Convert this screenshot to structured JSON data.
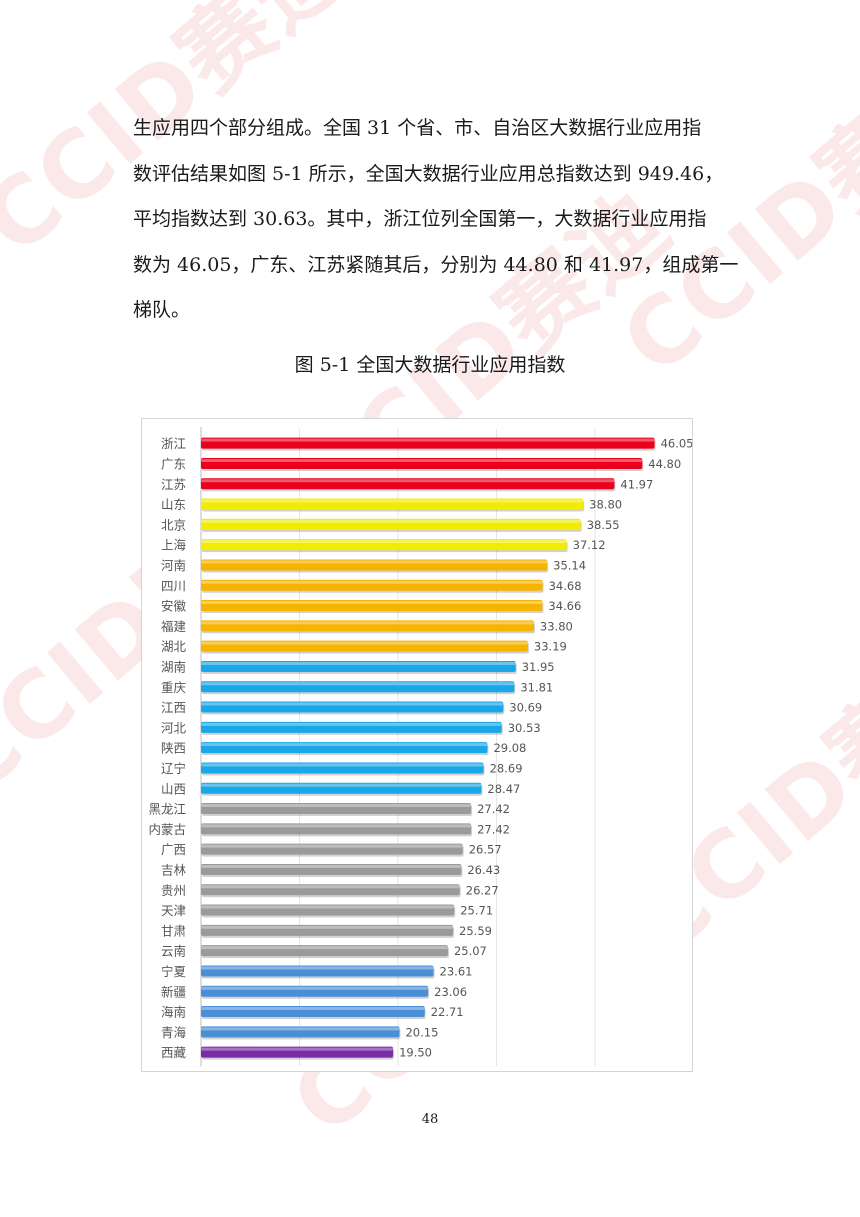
{
  "paragraph": {
    "lines": [
      "生应用四个部分组成。全国 31 个省、市、自治区大数据行业应用指",
      "数评估结果如图 5-1 所示，全国大数据行业应用总指数达到 949.46，",
      "平均指数达到  30.63。其中，浙江位列全国第一，大数据行业应用指",
      "数为 46.05，广东、江苏紧随其后，分别为 44.80 和 41.97，组成第一",
      "梯队。"
    ]
  },
  "figure": {
    "caption": "图 5-1  全国大数据行业应用指数"
  },
  "watermark": {
    "text": "CCID赛迪"
  },
  "page_number": "48",
  "chart_data": {
    "type": "bar",
    "orientation": "horizontal",
    "title": "",
    "xlabel": "",
    "ylabel": "",
    "xlim": [
      0,
      50
    ],
    "grid": "vertical",
    "legend": "none",
    "categories": [
      "浙江",
      "广东",
      "江苏",
      "山东",
      "北京",
      "上海",
      "河南",
      "四川",
      "安徽",
      "福建",
      "湖北",
      "湖南",
      "重庆",
      "江西",
      "河北",
      "陕西",
      "辽宁",
      "山西",
      "黑龙江",
      "内蒙古",
      "广西",
      "吉林",
      "贵州",
      "天津",
      "甘肃",
      "云南",
      "宁夏",
      "新疆",
      "海南",
      "青海",
      "西藏"
    ],
    "values": [
      46.05,
      44.8,
      41.97,
      38.8,
      38.55,
      37.12,
      35.14,
      34.68,
      34.66,
      33.8,
      33.19,
      31.95,
      31.81,
      30.69,
      30.53,
      29.08,
      28.69,
      28.47,
      27.42,
      27.42,
      26.57,
      26.43,
      26.27,
      25.71,
      25.59,
      25.07,
      23.61,
      23.06,
      22.71,
      20.15,
      19.5
    ],
    "value_labels": [
      "46.05",
      "44.80",
      "41.97",
      "38.80",
      "38.55",
      "37.12",
      "35.14",
      "34.68",
      "34.66",
      "33.80",
      "33.19",
      "31.95",
      "31.81",
      "30.69",
      "30.53",
      "29.08",
      "28.69",
      "28.47",
      "27.42",
      "27.42",
      "26.57",
      "26.43",
      "26.27",
      "25.71",
      "25.59",
      "25.07",
      "23.61",
      "23.06",
      "22.71",
      "20.15",
      "19.50"
    ],
    "bar_colors": [
      "#e8001c",
      "#e8001c",
      "#e8001c",
      "#f2ec00",
      "#f2ec00",
      "#f2ec00",
      "#f5b400",
      "#f5b400",
      "#f5b400",
      "#f5b400",
      "#f5b400",
      "#1aa7e8",
      "#1aa7e8",
      "#1aa7e8",
      "#1aa7e8",
      "#1aa7e8",
      "#1aa7e8",
      "#1aa7e8",
      "#9a9a9a",
      "#9a9a9a",
      "#9a9a9a",
      "#9a9a9a",
      "#9a9a9a",
      "#9a9a9a",
      "#9a9a9a",
      "#9a9a9a",
      "#4a8fd6",
      "#4a8fd6",
      "#4a8fd6",
      "#4a8fd6",
      "#7a2ba8"
    ]
  }
}
